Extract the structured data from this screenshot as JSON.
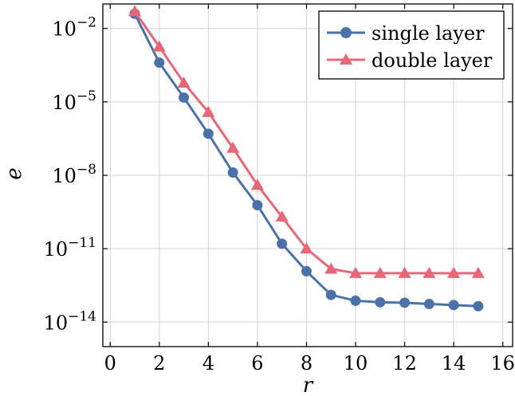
{
  "chart_data": {
    "type": "line",
    "xlabel": "r",
    "ylabel": "e",
    "xlim": [
      -0.3,
      16.4
    ],
    "ylim": [
      1e-15,
      0.1
    ],
    "y_scale": "log",
    "grid": true,
    "legend_position": "top-right",
    "x_ticks": [
      0,
      2,
      4,
      6,
      8,
      10,
      12,
      14,
      16
    ],
    "y_ticks": [
      {
        "value": 0.01,
        "mantissa": "10",
        "exponent": "−2"
      },
      {
        "value": 1e-05,
        "mantissa": "10",
        "exponent": "−5"
      },
      {
        "value": 1e-08,
        "mantissa": "10",
        "exponent": "−8"
      },
      {
        "value": 1e-11,
        "mantissa": "10",
        "exponent": "−11"
      },
      {
        "value": 1e-14,
        "mantissa": "10",
        "exponent": "−14"
      }
    ],
    "x": [
      1,
      2,
      3,
      4,
      5,
      6,
      7,
      8,
      9,
      10,
      11,
      12,
      13,
      14,
      15
    ],
    "series": [
      {
        "name": "single layer",
        "color": "#4a72a8",
        "marker": "circle",
        "values": [
          0.04,
          0.0004,
          1.5e-05,
          5e-07,
          1.3e-08,
          6e-10,
          1.6e-11,
          1.2e-12,
          1.3e-13,
          7.5e-14,
          6.5e-14,
          6.2e-14,
          5.5e-14,
          5e-14,
          4.5e-14
        ]
      },
      {
        "name": "double layer",
        "color": "#e76678",
        "marker": "triangle",
        "values": [
          0.05,
          0.0018,
          6e-05,
          3.8e-06,
          1.3e-07,
          4e-09,
          2e-10,
          1e-11,
          1.5e-12,
          1e-12,
          1e-12,
          1e-12,
          1e-12,
          1e-12,
          1e-12
        ]
      }
    ]
  }
}
